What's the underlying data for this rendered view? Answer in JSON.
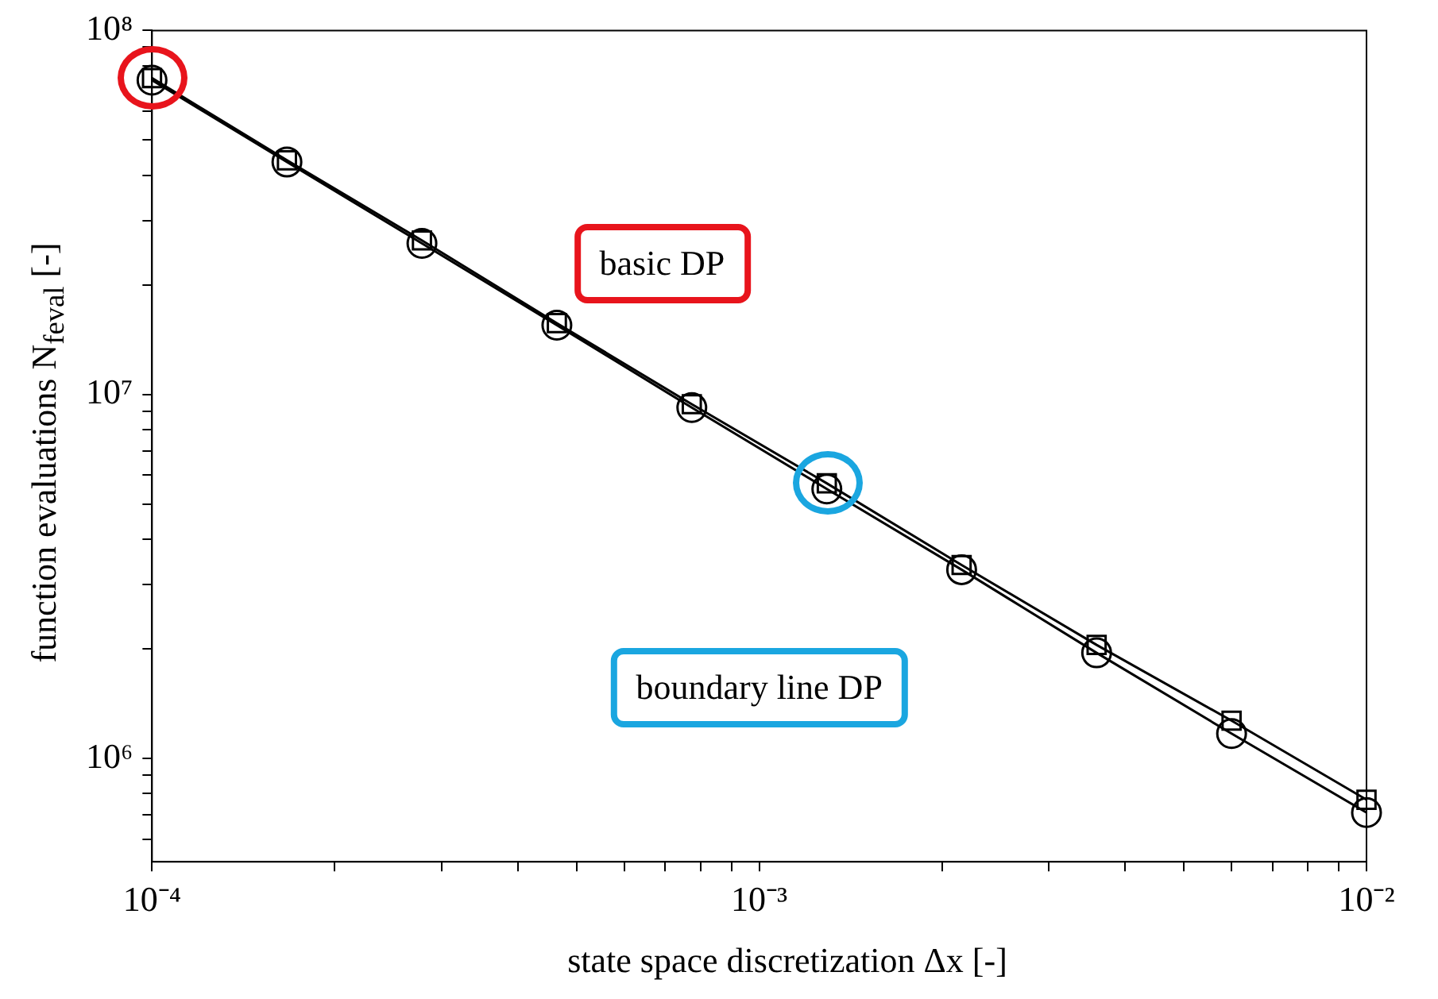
{
  "chart_data": {
    "type": "line",
    "log": "xy",
    "grid": false,
    "legend": false,
    "line_style": "solid",
    "xlabel": "state space discretization Δx [-]",
    "ylabel": "function evaluations N$_{feval}$ [-]",
    "x": [
      0.0001,
      0.0001668,
      0.0002783,
      0.0004642,
      0.0007743,
      0.001292,
      0.002154,
      0.003594,
      0.005995,
      0.01
    ],
    "series": [
      {
        "color": "#000000",
        "marker": "square",
        "values": [
          74000000,
          44000000,
          26500000,
          15700000,
          9400000,
          5700000,
          3400000,
          2050000,
          1270000,
          770000
        ]
      },
      {
        "color": "#000000",
        "marker": "circle",
        "values": [
          73000000,
          43500000,
          26000000,
          15500000,
          9200000,
          5500000,
          3300000,
          1950000,
          1170000,
          710000
        ]
      }
    ],
    "xlim": [
      0.0001,
      0.01
    ],
    "ylim": [
      520000,
      100000000
    ],
    "xticks": [
      {
        "value": 0.0001,
        "label": "10⁻⁴"
      },
      {
        "value": 0.0002,
        "label": null
      },
      {
        "value": 0.0003,
        "label": null
      },
      {
        "value": 0.0004,
        "label": null
      },
      {
        "value": 0.0005,
        "label": null
      },
      {
        "value": 0.0006,
        "label": null
      },
      {
        "value": 0.0007,
        "label": null
      },
      {
        "value": 0.0008,
        "label": null
      },
      {
        "value": 0.0009,
        "label": null
      },
      {
        "value": 0.001,
        "label": "10⁻³"
      },
      {
        "value": 0.002,
        "label": null
      },
      {
        "value": 0.003,
        "label": null
      },
      {
        "value": 0.004,
        "label": null
      },
      {
        "value": 0.005,
        "label": null
      },
      {
        "value": 0.006,
        "label": null
      },
      {
        "value": 0.007,
        "label": null
      },
      {
        "value": 0.008,
        "label": null
      },
      {
        "value": 0.009,
        "label": null
      },
      {
        "value": 0.01,
        "label": "10⁻²"
      }
    ],
    "yticks": [
      {
        "value": 600000,
        "label": null
      },
      {
        "value": 700000,
        "label": null
      },
      {
        "value": 800000,
        "label": null
      },
      {
        "value": 900000,
        "label": null
      },
      {
        "value": 1000000,
        "label": "10⁶"
      },
      {
        "value": 2000000,
        "label": null
      },
      {
        "value": 3000000,
        "label": null
      },
      {
        "value": 4000000,
        "label": null
      },
      {
        "value": 5000000,
        "label": null
      },
      {
        "value": 6000000,
        "label": null
      },
      {
        "value": 7000000,
        "label": null
      },
      {
        "value": 8000000,
        "label": null
      },
      {
        "value": 9000000,
        "label": null
      },
      {
        "value": 10000000,
        "label": "10⁷"
      },
      {
        "value": 20000000,
        "label": null
      },
      {
        "value": 30000000,
        "label": null
      },
      {
        "value": 40000000,
        "label": null
      },
      {
        "value": 50000000,
        "label": null
      },
      {
        "value": 60000000,
        "label": null
      },
      {
        "value": 70000000,
        "label": null
      },
      {
        "value": 80000000,
        "label": null
      },
      {
        "value": 90000000,
        "label": null
      },
      {
        "value": 100000000,
        "label": "10⁸"
      }
    ],
    "annotations": [
      "basic DP",
      "boundary line DP"
    ]
  }
}
